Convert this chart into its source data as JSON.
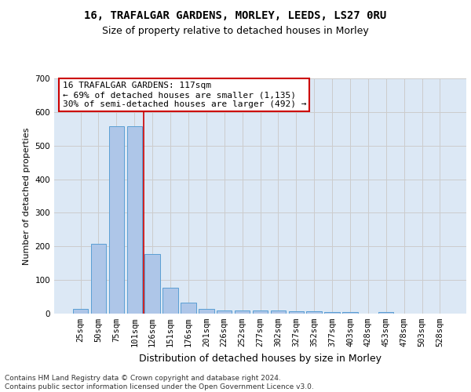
{
  "title1": "16, TRAFALGAR GARDENS, MORLEY, LEEDS, LS27 0RU",
  "title2": "Size of property relative to detached houses in Morley",
  "xlabel": "Distribution of detached houses by size in Morley",
  "ylabel": "Number of detached properties",
  "categories": [
    "25sqm",
    "50sqm",
    "75sqm",
    "101sqm",
    "126sqm",
    "151sqm",
    "176sqm",
    "201sqm",
    "226sqm",
    "252sqm",
    "277sqm",
    "302sqm",
    "327sqm",
    "352sqm",
    "377sqm",
    "403sqm",
    "428sqm",
    "453sqm",
    "478sqm",
    "503sqm",
    "528sqm"
  ],
  "values": [
    13,
    207,
    557,
    557,
    178,
    78,
    32,
    13,
    10,
    10,
    10,
    10,
    6,
    6,
    5,
    5,
    0,
    5,
    0,
    0,
    0
  ],
  "bar_color": "#aec6e8",
  "bar_edge_color": "#5a9fd4",
  "vline_color": "#cc0000",
  "annotation_line1": "16 TRAFALGAR GARDENS: 117sqm",
  "annotation_line2": "← 69% of detached houses are smaller (1,135)",
  "annotation_line3": "30% of semi-detached houses are larger (492) →",
  "annotation_box_color": "#ffffff",
  "annotation_box_edge_color": "#cc0000",
  "ylim": [
    0,
    700
  ],
  "yticks": [
    0,
    100,
    200,
    300,
    400,
    500,
    600,
    700
  ],
  "grid_color": "#cccccc",
  "background_color": "#dce8f5",
  "footer": "Contains HM Land Registry data © Crown copyright and database right 2024.\nContains public sector information licensed under the Open Government Licence v3.0.",
  "title1_fontsize": 10,
  "title2_fontsize": 9,
  "xlabel_fontsize": 9,
  "ylabel_fontsize": 8,
  "tick_fontsize": 7.5,
  "annotation_fontsize": 8,
  "footer_fontsize": 6.5
}
